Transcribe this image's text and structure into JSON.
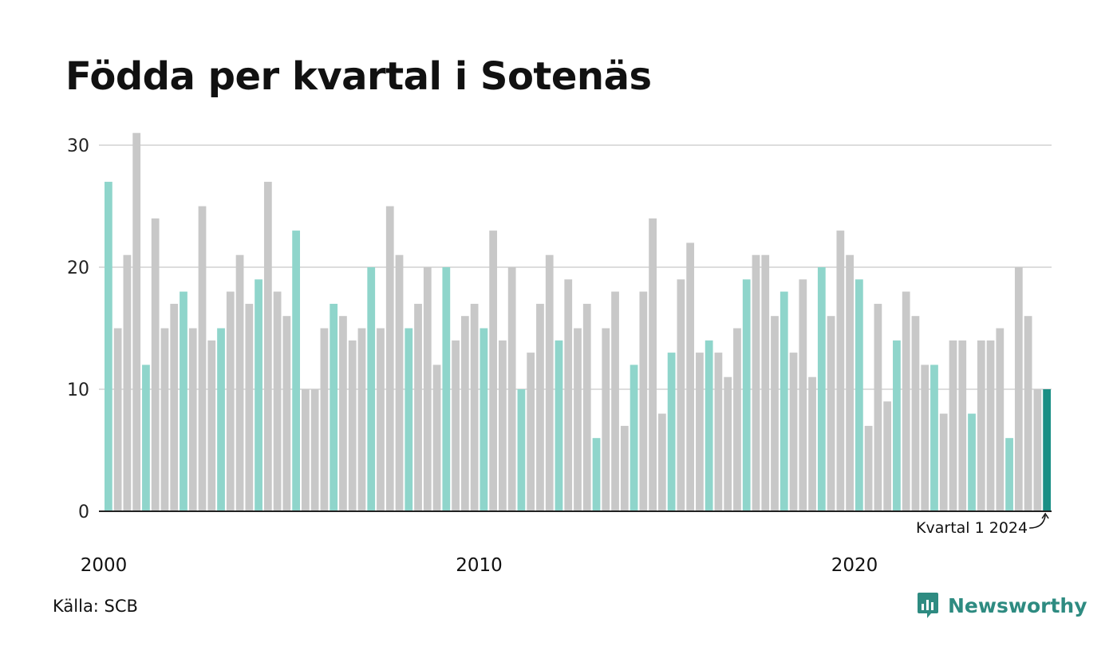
{
  "chart_data": {
    "type": "bar",
    "title": "Födda per kvartal i Sotenäs",
    "xlabel": "",
    "ylabel": "",
    "ylim": [
      0,
      30
    ],
    "yticks": [
      0,
      10,
      20,
      30
    ],
    "xticks": [
      "2000",
      "2010",
      "2020"
    ],
    "start_year": 2000,
    "grid": true,
    "values": [
      27,
      15,
      21,
      31,
      12,
      24,
      15,
      17,
      18,
      15,
      25,
      14,
      15,
      18,
      21,
      17,
      19,
      27,
      18,
      16,
      23,
      10,
      10,
      15,
      17,
      16,
      14,
      15,
      20,
      15,
      25,
      21,
      15,
      17,
      20,
      12,
      20,
      14,
      16,
      17,
      15,
      23,
      14,
      20,
      10,
      13,
      17,
      21,
      14,
      19,
      15,
      17,
      6,
      15,
      18,
      7,
      12,
      18,
      24,
      8,
      13,
      19,
      22,
      13,
      14,
      13,
      11,
      15,
      19,
      21,
      21,
      16,
      18,
      13,
      19,
      11,
      20,
      16,
      23,
      21,
      19,
      7,
      17,
      9,
      14,
      18,
      16,
      12,
      12,
      8,
      14,
      14,
      8,
      14,
      14,
      15,
      6,
      20,
      16,
      10,
      10
    ],
    "highlight_quarter": 1,
    "annotation": "Kvartal 1 2024",
    "colors": {
      "highlight": "#8fd5cb",
      "other": "#c8c8c8",
      "latest": "#1a8f85",
      "grid": "#dddddd",
      "axis": "#222222"
    }
  },
  "footer": {
    "source": "Källa: SCB",
    "brand": "Newsworthy",
    "brand_icon": "newsworthy-logo-icon"
  }
}
